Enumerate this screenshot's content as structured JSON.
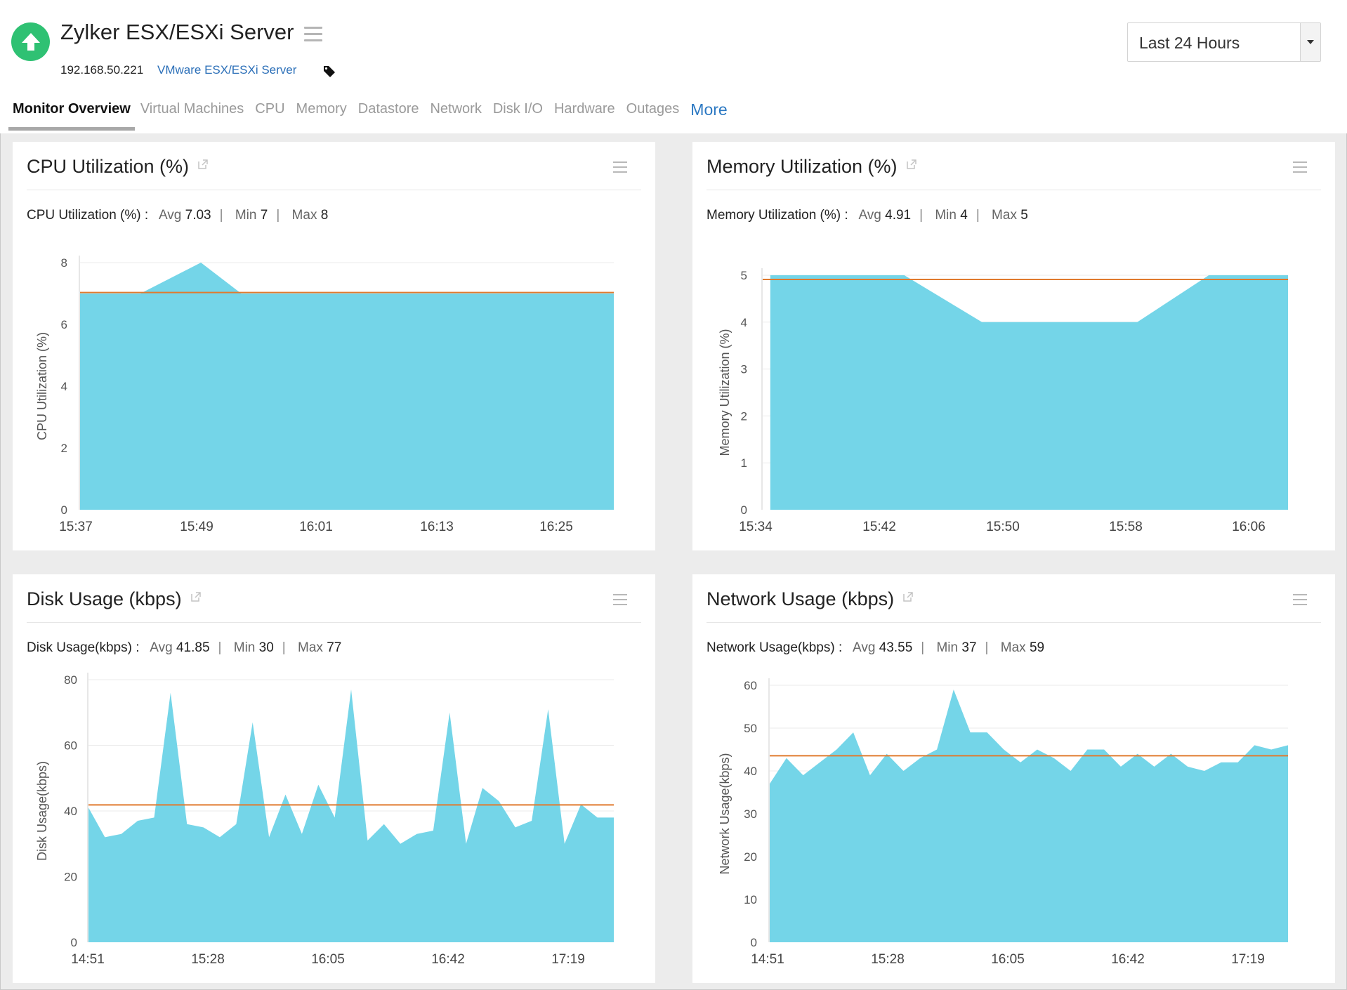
{
  "header": {
    "title": "Zylker ESX/ESXi Server",
    "ip": "192.168.50.221",
    "type_link": "VMware ESX/ESXi Server",
    "status_color": "#2fc173",
    "time_range": "Last 24 Hours"
  },
  "tabs": [
    {
      "label": "Monitor Overview",
      "active": true
    },
    {
      "label": "Virtual Machines"
    },
    {
      "label": "CPU"
    },
    {
      "label": "Memory"
    },
    {
      "label": "Datastore"
    },
    {
      "label": "Network"
    },
    {
      "label": "Disk I/O"
    },
    {
      "label": "Hardware"
    },
    {
      "label": "Outages"
    },
    {
      "label": "More"
    }
  ],
  "colors": {
    "area": "#74d5e8",
    "avg_line": "#e07a2e"
  },
  "panels": {
    "cpu": {
      "title": "CPU Utilization (%)",
      "stats_label": "CPU Utilization (%) :",
      "avg_label": "Avg",
      "avg": "7.03",
      "min_label": "Min",
      "min": "7",
      "max_label": "Max",
      "max": "8"
    },
    "memory": {
      "title": "Memory Utilization (%)",
      "stats_label": "Memory Utilization (%) :",
      "avg_label": "Avg",
      "avg": "4.91",
      "min_label": "Min",
      "min": "4",
      "max_label": "Max",
      "max": "5"
    },
    "disk": {
      "title": "Disk Usage (kbps)",
      "stats_label": "Disk Usage(kbps) :",
      "avg_label": "Avg",
      "avg": "41.85",
      "min_label": "Min",
      "min": "30",
      "max_label": "Max",
      "max": "77"
    },
    "network": {
      "title": "Network Usage (kbps)",
      "stats_label": "Network Usage(kbps) :",
      "avg_label": "Avg",
      "avg": "43.55",
      "min_label": "Min",
      "min": "37",
      "max_label": "Max",
      "max": "59"
    }
  },
  "chart_data": [
    {
      "id": "cpu",
      "type": "area",
      "ylabel": "CPU Utilization (%)",
      "ylim": [
        0,
        8
      ],
      "yticks": [
        0,
        2,
        4,
        6,
        8
      ],
      "xticks": [
        "15:37",
        "15:49",
        "16:01",
        "16:13",
        "16:25"
      ],
      "x_minutes": [
        0,
        6,
        12,
        16,
        53
      ],
      "values": [
        7,
        7,
        8,
        7,
        7
      ],
      "average": 7.03
    },
    {
      "id": "memory",
      "type": "area",
      "ylabel": "Memory Utilization (%)",
      "ylim": [
        0,
        5
      ],
      "yticks": [
        0,
        1,
        2,
        3,
        4,
        5
      ],
      "xticks": [
        "15:34",
        "15:42",
        "15:50",
        "15:58",
        "16:06"
      ],
      "x_minutes": [
        0.5,
        9.3,
        14.4,
        24.6,
        29.3,
        34.5
      ],
      "values": [
        5,
        5,
        4,
        4,
        5,
        5
      ],
      "average": 4.91
    },
    {
      "id": "disk",
      "type": "area",
      "ylabel": "Disk Usage(kbps)",
      "ylim": [
        0,
        80
      ],
      "yticks": [
        0,
        20,
        40,
        60,
        80
      ],
      "xticks": [
        "14:51",
        "15:28",
        "16:05",
        "16:42",
        "17:19"
      ],
      "values": [
        41,
        32,
        33,
        37,
        38,
        76,
        36,
        35,
        32,
        36,
        67,
        32,
        45,
        33,
        48,
        38,
        77,
        31,
        36,
        30,
        33,
        34,
        70,
        30,
        47,
        43,
        35,
        37,
        71,
        30,
        42,
        38,
        38
      ],
      "average": 41.85
    },
    {
      "id": "network",
      "type": "area",
      "ylabel": "Network Usage(kbps)",
      "ylim": [
        0,
        60
      ],
      "yticks": [
        0,
        10,
        20,
        30,
        40,
        50,
        60
      ],
      "xticks": [
        "14:51",
        "15:28",
        "16:05",
        "16:42",
        "17:19"
      ],
      "values": [
        37,
        43,
        39,
        42,
        45,
        49,
        39,
        44,
        40,
        43,
        45,
        59,
        49,
        49,
        45,
        42,
        45,
        43,
        40,
        45,
        45,
        41,
        44,
        41,
        44,
        41,
        40,
        42,
        42,
        46,
        45,
        46
      ],
      "average": 43.55
    }
  ]
}
